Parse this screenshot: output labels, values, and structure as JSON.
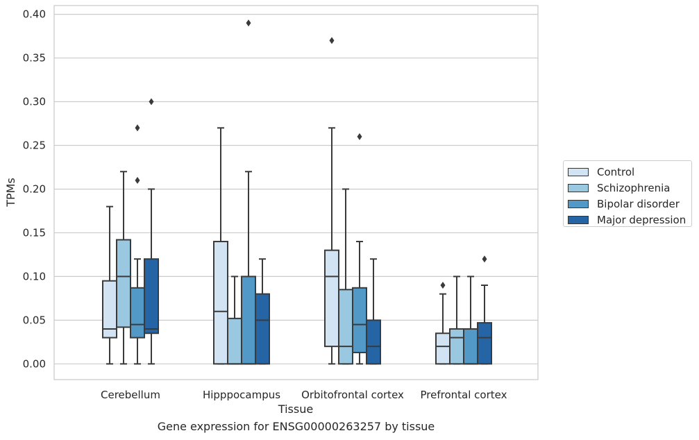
{
  "caption": "Gene expression for ENSG00000263257 by tissue",
  "chart_data": {
    "type": "box",
    "xlabel": "Tissue",
    "ylabel": "TPMs",
    "ylim": [
      -0.018,
      0.41
    ],
    "yticks": [
      0.0,
      0.05,
      0.1,
      0.15,
      0.2,
      0.25,
      0.3,
      0.35,
      0.4
    ],
    "ytick_labels": [
      "0.00",
      "0.05",
      "0.10",
      "0.15",
      "0.20",
      "0.25",
      "0.30",
      "0.35",
      "0.40"
    ],
    "grid": "horizontal",
    "legend_position": "right",
    "categories": [
      "Cerebellum",
      "Hipppocampus",
      "Orbitofrontal cortex",
      "Prefrontal cortex"
    ],
    "series": [
      {
        "name": "Control",
        "color": "#d2e3f3",
        "boxes": [
          {
            "whislo": 0.0,
            "q1": 0.03,
            "med": 0.04,
            "q3": 0.095,
            "whishi": 0.18,
            "fliers": []
          },
          {
            "whislo": 0.0,
            "q1": 0.0,
            "med": 0.06,
            "q3": 0.14,
            "whishi": 0.27,
            "fliers": []
          },
          {
            "whislo": 0.0,
            "q1": 0.02,
            "med": 0.1,
            "q3": 0.13,
            "whishi": 0.27,
            "fliers": [
              0.37
            ]
          },
          {
            "whislo": 0.0,
            "q1": 0.0,
            "med": 0.02,
            "q3": 0.035,
            "whishi": 0.08,
            "fliers": [
              0.09
            ]
          }
        ]
      },
      {
        "name": "Schizophrenia",
        "color": "#9ac8e0",
        "boxes": [
          {
            "whislo": 0.0,
            "q1": 0.042,
            "med": 0.1,
            "q3": 0.142,
            "whishi": 0.22,
            "fliers": []
          },
          {
            "whislo": 0.0,
            "q1": 0.0,
            "med": 0.0,
            "q3": 0.052,
            "whishi": 0.1,
            "fliers": []
          },
          {
            "whislo": 0.0,
            "q1": 0.0,
            "med": 0.02,
            "q3": 0.085,
            "whishi": 0.2,
            "fliers": []
          },
          {
            "whislo": 0.0,
            "q1": 0.0,
            "med": 0.03,
            "q3": 0.04,
            "whishi": 0.1,
            "fliers": []
          }
        ]
      },
      {
        "name": "Bipolar disorder",
        "color": "#5299c8",
        "boxes": [
          {
            "whislo": 0.0,
            "q1": 0.03,
            "med": 0.045,
            "q3": 0.087,
            "whishi": 0.12,
            "fliers": [
              0.21,
              0.27
            ]
          },
          {
            "whislo": 0.0,
            "q1": 0.0,
            "med": 0.0,
            "q3": 0.1,
            "whishi": 0.22,
            "fliers": [
              0.39
            ]
          },
          {
            "whislo": 0.0,
            "q1": 0.013,
            "med": 0.045,
            "q3": 0.087,
            "whishi": 0.14,
            "fliers": [
              0.26
            ]
          },
          {
            "whislo": 0.0,
            "q1": 0.0,
            "med": 0.0,
            "q3": 0.04,
            "whishi": 0.1,
            "fliers": []
          }
        ]
      },
      {
        "name": "Major depression",
        "color": "#2565a5",
        "boxes": [
          {
            "whislo": 0.0,
            "q1": 0.035,
            "med": 0.04,
            "q3": 0.12,
            "whishi": 0.2,
            "fliers": [
              0.3
            ]
          },
          {
            "whislo": 0.0,
            "q1": 0.0,
            "med": 0.05,
            "q3": 0.08,
            "whishi": 0.12,
            "fliers": []
          },
          {
            "whislo": 0.0,
            "q1": 0.0,
            "med": 0.02,
            "q3": 0.05,
            "whishi": 0.12,
            "fliers": []
          },
          {
            "whislo": 0.0,
            "q1": 0.0,
            "med": 0.03,
            "q3": 0.047,
            "whishi": 0.09,
            "fliers": [
              0.12
            ]
          }
        ]
      }
    ]
  }
}
